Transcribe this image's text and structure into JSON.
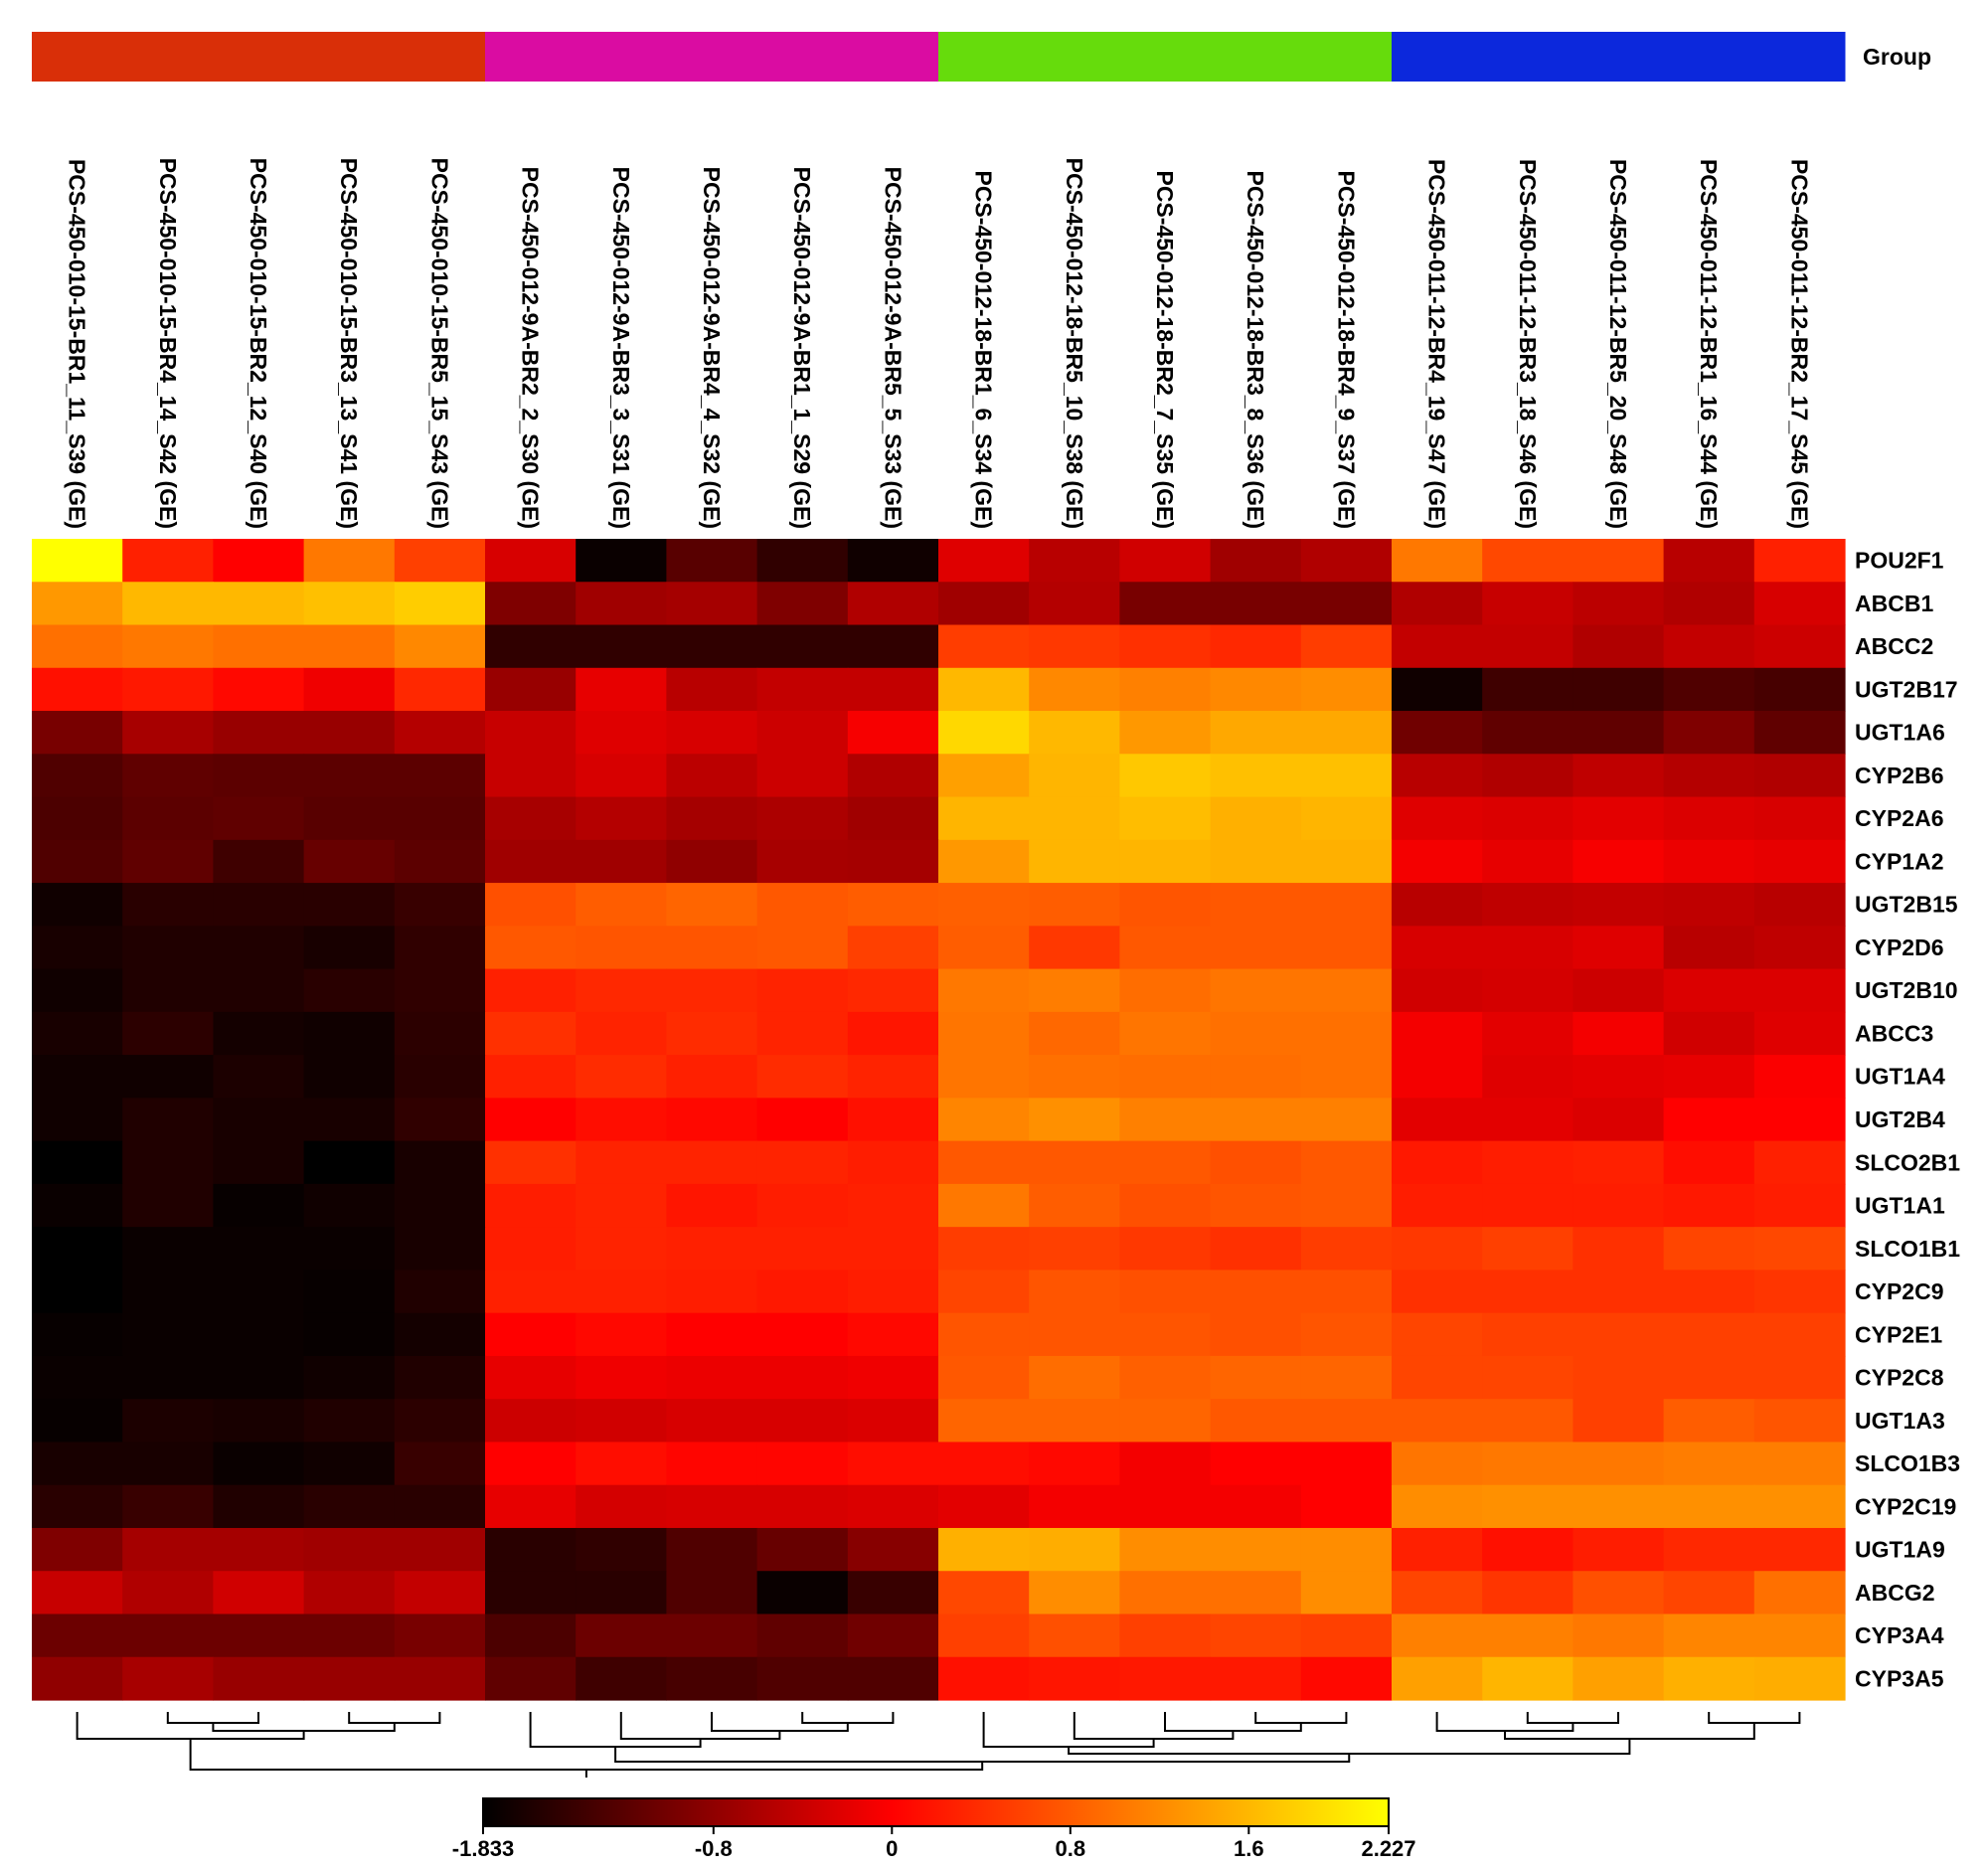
{
  "chart_data": {
    "type": "heatmap",
    "group_legend_label": "Group",
    "column_groups": [
      {
        "color": "#d92f08",
        "count": 5
      },
      {
        "color": "#da0ca2",
        "count": 5
      },
      {
        "color": "#66dc0c",
        "count": 5
      },
      {
        "color": "#0c28dc",
        "count": 5
      }
    ],
    "columns": [
      "PCS-450-010-15-BR1_11_S39 (GE)",
      "PCS-450-010-15-BR4_14_S42 (GE)",
      "PCS-450-010-15-BR2_12_S40 (GE)",
      "PCS-450-010-15-BR3_13_S41 (GE)",
      "PCS-450-010-15-BR5_15_S43 (GE)",
      "PCS-450-012-9A-BR2_2_S30 (GE)",
      "PCS-450-012-9A-BR3_3_S31 (GE)",
      "PCS-450-012-9A-BR4_4_S32 (GE)",
      "PCS-450-012-9A-BR1_1_S29 (GE)",
      "PCS-450-012-9A-BR5_5_S33 (GE)",
      "PCS-450-012-18-BR1_6_S34 (GE)",
      "PCS-450-012-18-BR5_10_S38 (GE)",
      "PCS-450-012-18-BR2_7_S35 (GE)",
      "PCS-450-012-18-BR3_8_S36 (GE)",
      "PCS-450-012-18-BR4_9_S37 (GE)",
      "PCS-450-011-12-BR4_19_S47 (GE)",
      "PCS-450-011-12-BR3_18_S46 (GE)",
      "PCS-450-011-12-BR5_20_S48 (GE)",
      "PCS-450-011-12-BR1_16_S44 (GE)",
      "PCS-450-011-12-BR2_17_S45 (GE)"
    ],
    "rows": [
      "POU2F1",
      "ABCB1",
      "ABCC2",
      "UGT2B17",
      "UGT1A6",
      "CYP2B6",
      "CYP2A6",
      "CYP1A2",
      "UGT2B15",
      "CYP2D6",
      "UGT2B10",
      "ABCC3",
      "UGT1A4",
      "UGT2B4",
      "SLCO2B1",
      "UGT1A1",
      "SLCO1B1",
      "CYP2C9",
      "CYP2E1",
      "CYP2C8",
      "UGT1A3",
      "SLCO1B3",
      "CYP2C19",
      "UGT1A9",
      "ABCG2",
      "CYP3A4",
      "CYP3A5"
    ],
    "values": [
      [
        2.227,
        0.28,
        0,
        1.05,
        0.56,
        -0.29,
        -1.76,
        -1.2,
        -1.49,
        -1.72,
        -0.23,
        -0.51,
        -0.34,
        -0.68,
        -0.57,
        1.05,
        0.63,
        0.63,
        -0.51,
        0.28
      ],
      [
        1.33,
        1.61,
        1.61,
        1.68,
        1.79,
        -0.92,
        -0.68,
        -0.65,
        -0.92,
        -0.57,
        -0.68,
        -0.54,
        -0.97,
        -0.97,
        -0.97,
        -0.57,
        -0.4,
        -0.49,
        -0.57,
        -0.29
      ],
      [
        0.98,
        1.05,
        0.98,
        0.98,
        1.19,
        -1.49,
        -1.49,
        -1.49,
        -1.49,
        -1.49,
        0.53,
        0.49,
        0.42,
        0.35,
        0.53,
        -0.43,
        -0.43,
        -0.57,
        -0.43,
        -0.37
      ],
      [
        0.14,
        0.21,
        0.07,
        -0.11,
        0.35,
        -0.74,
        -0.17,
        -0.51,
        -0.43,
        -0.43,
        1.61,
        1.19,
        1.12,
        1.19,
        1.23,
        -1.72,
        -1.38,
        -1.38,
        -1.26,
        -1.32
      ],
      [
        -0.97,
        -0.63,
        -0.74,
        -0.74,
        -0.54,
        -0.4,
        -0.23,
        -0.29,
        -0.37,
        -0.06,
        1.89,
        1.61,
        1.33,
        1.47,
        1.47,
        -1.03,
        -1.14,
        -1.14,
        -0.92,
        -1.14
      ],
      [
        -1.26,
        -1.14,
        -1.17,
        -1.17,
        -1.17,
        -0.4,
        -0.29,
        -0.49,
        -0.37,
        -0.57,
        1.4,
        1.58,
        1.75,
        1.68,
        1.68,
        -0.51,
        -0.57,
        -0.46,
        -0.54,
        -0.57
      ],
      [
        -1.29,
        -1.17,
        -1.14,
        -1.2,
        -1.2,
        -0.63,
        -0.54,
        -0.65,
        -0.6,
        -0.68,
        1.58,
        1.58,
        1.65,
        1.54,
        1.58,
        -0.23,
        -0.26,
        -0.2,
        -0.26,
        -0.29
      ],
      [
        -1.26,
        -1.14,
        -1.38,
        -1.09,
        -1.17,
        -0.68,
        -0.68,
        -0.8,
        -0.63,
        -0.65,
        1.33,
        1.58,
        1.58,
        1.54,
        1.54,
        -0.08,
        -0.17,
        -0.06,
        -0.14,
        -0.17
      ],
      [
        -1.72,
        -1.54,
        -1.54,
        -1.54,
        -1.43,
        0.7,
        0.81,
        0.88,
        0.77,
        0.81,
        0.84,
        0.81,
        0.74,
        0.77,
        0.77,
        -0.51,
        -0.46,
        -0.43,
        -0.46,
        -0.51
      ],
      [
        -1.66,
        -1.6,
        -1.6,
        -1.66,
        -1.49,
        0.77,
        0.74,
        0.74,
        0.77,
        0.56,
        0.81,
        0.49,
        0.77,
        0.77,
        0.77,
        -0.29,
        -0.29,
        -0.23,
        -0.51,
        -0.46
      ],
      [
        -1.72,
        -1.6,
        -1.6,
        -1.54,
        -1.49,
        0.28,
        0.35,
        0.35,
        0.31,
        0.35,
        1.05,
        1.09,
        0.95,
        1.02,
        1.02,
        -0.34,
        -0.31,
        -0.37,
        -0.26,
        -0.26
      ],
      [
        -1.66,
        -1.52,
        -1.69,
        -1.72,
        -1.52,
        0.42,
        0.31,
        0.38,
        0.31,
        0.18,
        1.02,
        0.91,
        1.02,
        0.98,
        0.98,
        -0.08,
        -0.2,
        -0.08,
        -0.34,
        -0.23
      ],
      [
        -1.72,
        -1.72,
        -1.63,
        -1.72,
        -1.54,
        0.28,
        0.38,
        0.28,
        0.38,
        0.31,
        1.02,
        0.98,
        0.95,
        0.95,
        0.98,
        -0.08,
        -0.23,
        -0.2,
        -0.17,
        -0.03
      ],
      [
        -1.72,
        -1.6,
        -1.66,
        -1.66,
        -1.49,
        0,
        0.11,
        0.07,
        0,
        0.14,
        1.16,
        1.26,
        1.12,
        1.12,
        1.12,
        -0.2,
        -0.2,
        -0.26,
        0,
        0
      ],
      [
        -1.833,
        -1.6,
        -1.66,
        -1.833,
        -1.66,
        0.42,
        0.31,
        0.31,
        0.31,
        0.25,
        0.77,
        0.77,
        0.77,
        0.7,
        0.77,
        0.21,
        0.25,
        0.28,
        0.11,
        0.28
      ],
      [
        -1.76,
        -1.6,
        -1.78,
        -1.72,
        -1.66,
        0.25,
        0.31,
        0.18,
        0.25,
        0.28,
        1.05,
        0.81,
        0.7,
        0.74,
        0.77,
        0.25,
        0.25,
        0.25,
        0.21,
        0.25
      ],
      [
        -1.833,
        -1.76,
        -1.76,
        -1.76,
        -1.66,
        0.25,
        0.31,
        0.28,
        0.28,
        0.28,
        0.53,
        0.56,
        0.49,
        0.42,
        0.53,
        0.49,
        0.56,
        0.42,
        0.6,
        0.63
      ],
      [
        -1.833,
        -1.76,
        -1.76,
        -1.78,
        -1.6,
        0.28,
        0.28,
        0.25,
        0.21,
        0.25,
        0.6,
        0.74,
        0.7,
        0.7,
        0.7,
        0.42,
        0.42,
        0.42,
        0.42,
        0.46
      ],
      [
        -1.78,
        -1.76,
        -1.76,
        -1.78,
        -1.69,
        0,
        0.07,
        0,
        0,
        0.07,
        0.74,
        0.74,
        0.74,
        0.7,
        0.74,
        0.6,
        0.56,
        0.56,
        0.56,
        0.56
      ],
      [
        -1.76,
        -1.76,
        -1.76,
        -1.72,
        -1.6,
        -0.17,
        -0.11,
        -0.14,
        -0.14,
        -0.11,
        0.77,
        0.95,
        0.84,
        0.88,
        0.88,
        0.6,
        0.6,
        0.56,
        0.56,
        0.56
      ],
      [
        -1.78,
        -1.63,
        -1.66,
        -1.6,
        -1.52,
        -0.37,
        -0.34,
        -0.29,
        -0.29,
        -0.26,
        0.88,
        0.88,
        0.88,
        0.77,
        0.77,
        0.77,
        0.77,
        0.56,
        0.81,
        0.74
      ],
      [
        -1.66,
        -1.66,
        -1.76,
        -1.72,
        -1.43,
        0,
        0.11,
        0.04,
        0.04,
        0.11,
        0.11,
        0.07,
        -0.08,
        0,
        0,
        1.02,
        1.05,
        1.05,
        1.09,
        1.09
      ],
      [
        -1.54,
        -1.43,
        -1.6,
        -1.54,
        -1.54,
        -0.17,
        -0.31,
        -0.29,
        -0.29,
        -0.26,
        -0.2,
        -0.08,
        -0.08,
        -0.08,
        0,
        1.23,
        1.26,
        1.26,
        1.26,
        1.26
      ],
      [
        -0.92,
        -0.65,
        -0.65,
        -0.68,
        -0.68,
        -1.54,
        -1.49,
        -1.26,
        -1.09,
        -0.86,
        1.54,
        1.51,
        1.23,
        1.23,
        1.23,
        0.28,
        0.14,
        0.25,
        0.35,
        0.35
      ],
      [
        -0.4,
        -0.57,
        -0.34,
        -0.57,
        -0.43,
        -1.54,
        -1.54,
        -1.26,
        -1.76,
        -1.43,
        0.63,
        1.23,
        0.98,
        0.98,
        1.23,
        0.6,
        0.46,
        0.7,
        0.6,
        0.98
      ],
      [
        -1.06,
        -1.06,
        -1.06,
        -1.06,
        -0.97,
        -1.29,
        -1.06,
        -1.06,
        -1.14,
        -1.03,
        0.56,
        0.7,
        0.56,
        0.6,
        0.56,
        1.12,
        1.12,
        1.05,
        1.16,
        1.16
      ],
      [
        -0.8,
        -0.63,
        -0.74,
        -0.74,
        -0.74,
        -1.14,
        -1.38,
        -1.32,
        -1.26,
        -1.26,
        0.14,
        0.18,
        0.21,
        0.21,
        0.07,
        1.4,
        1.58,
        1.4,
        1.54,
        1.51
      ]
    ],
    "color_scale": {
      "min": -1.833,
      "max": 2.227,
      "colors": [
        "#000000",
        "#ff0000",
        "#ffff00"
      ],
      "mid_value": 0,
      "ticks": [
        -1.833,
        -0.8,
        0,
        0.8,
        1.6,
        2.227
      ],
      "tick_labels": [
        "-1.833",
        "-0.8",
        "0",
        "0.8",
        "1.6",
        "2.227"
      ]
    },
    "column_dendrogram": true
  }
}
